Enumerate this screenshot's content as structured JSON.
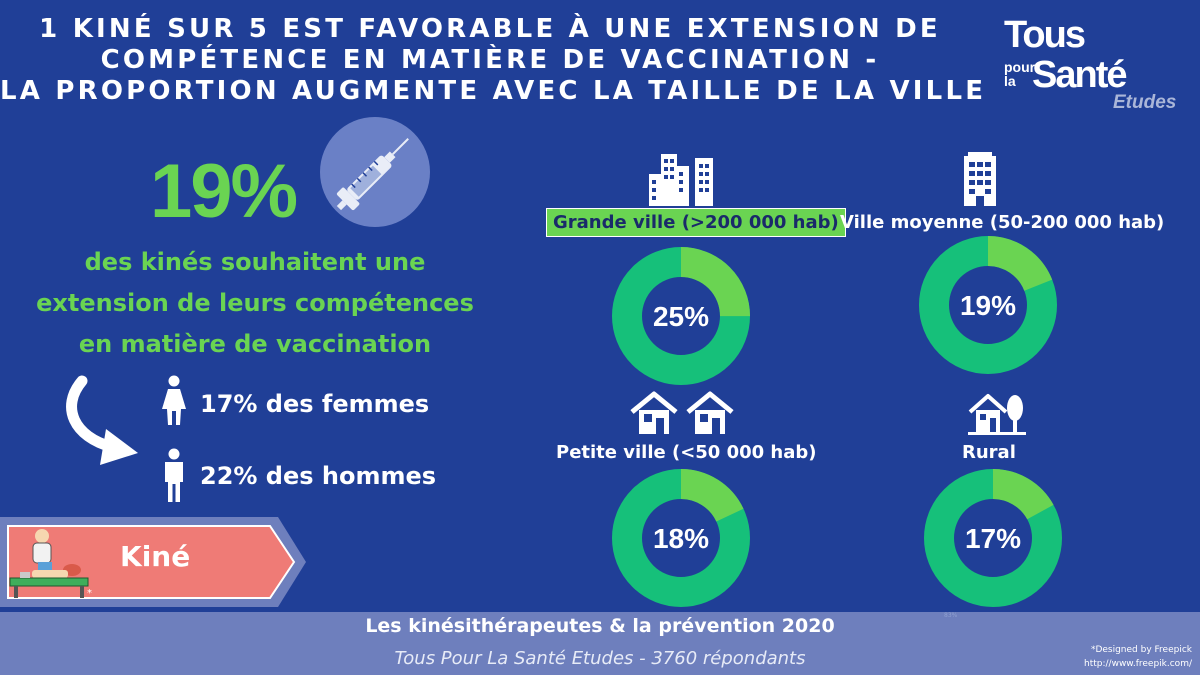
{
  "title": {
    "line1": "1 KINÉ SUR 5 EST FAVORABLE À UNE EXTENSION DE",
    "line2": "COMPÉTENCE EN MATIÈRE DE VACCINATION -",
    "line3": "LA PROPORTION AUGMENTE AVEC LA TAILLE DE LA VILLE"
  },
  "logo": {
    "tous": "Tous",
    "pour": "pour",
    "la": "la",
    "sante": "Santé",
    "etudes": "Etudes"
  },
  "main_stat": {
    "value": "19%",
    "desc1": "des kinés souhaitent une",
    "desc2": "extension de leurs compétences",
    "desc3": "en matière de vaccination"
  },
  "gender": {
    "femmes": "17% des femmes",
    "hommes": "22% des hommes"
  },
  "kine_label": "Kiné",
  "asterisk": "*",
  "cities": [
    {
      "label": "Grande ville (>200 000 hab)",
      "pct_text": "25%",
      "value": 25,
      "icon": "buildings-icon"
    },
    {
      "label": "Ville moyenne (50-200 000 hab)",
      "pct_text": "19%",
      "value": 19,
      "icon": "tower-icon"
    },
    {
      "label": "Petite ville (<50 000 hab)",
      "pct_text": "18%",
      "value": 18,
      "icon": "houses-icon"
    },
    {
      "label": "Rural",
      "pct_text": "17%",
      "value": 17,
      "icon": "farmhouse-icon"
    }
  ],
  "mini_label": "83%",
  "colors": {
    "background": "#203f97",
    "green_light": "#6ad452",
    "green_dark": "#16c07a",
    "footer": "#6e7fbd",
    "kine_band": "#ef7b76"
  },
  "footer": {
    "line1": "Les kinésithérapeutes & la prévention 2020",
    "line2": "Tous Pour La Santé Etudes - 3760 répondants",
    "credit1": "*Designed by Freepick",
    "credit2": "http://www.freepik.com/"
  }
}
